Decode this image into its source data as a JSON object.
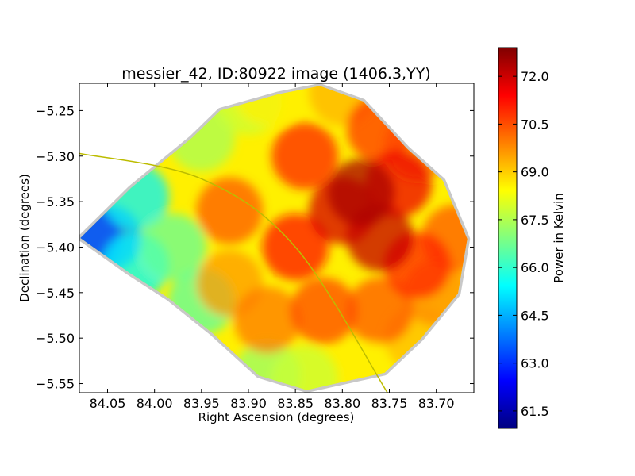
{
  "chart_data": {
    "type": "heatmap",
    "title": "messier_42, ID:80922 image (1406.3,YY)",
    "xlabel": "Right Ascension (degrees)",
    "ylabel": "Declination (degrees)",
    "xlim": [
      84.08,
      83.66
    ],
    "ylim": [
      -5.56,
      -5.22
    ],
    "x_ticks": [
      84.05,
      84.0,
      83.95,
      83.9,
      83.85,
      83.8,
      83.75,
      83.7
    ],
    "x_tick_labels": [
      "84.05",
      "84.00",
      "83.95",
      "83.90",
      "83.85",
      "83.80",
      "83.75",
      "83.70"
    ],
    "y_ticks": [
      -5.25,
      -5.3,
      -5.35,
      -5.4,
      -5.45,
      -5.5,
      -5.55
    ],
    "y_tick_labels": [
      "−5.25",
      "−5.30",
      "−5.35",
      "−5.40",
      "−5.45",
      "−5.50",
      "−5.55"
    ],
    "colorbar": {
      "label": "Power in Kelvin",
      "range": [
        60.95,
        72.9
      ],
      "ticks": [
        61.5,
        63.0,
        64.5,
        66.0,
        67.5,
        69.0,
        70.5,
        72.0
      ],
      "tick_labels": [
        "61.5",
        "63.0",
        "64.5",
        "66.0",
        "67.5",
        "69.0",
        "70.5",
        "72.0"
      ],
      "colormap": "jet"
    },
    "footprint_outline": [
      [
        84.079,
        -5.39
      ],
      [
        84.025,
        -5.335
      ],
      [
        83.96,
        -5.28
      ],
      [
        83.93,
        -5.25
      ],
      [
        83.868,
        -5.232
      ],
      [
        83.824,
        -5.223
      ],
      [
        83.778,
        -5.24
      ],
      [
        83.731,
        -5.292
      ],
      [
        83.693,
        -5.327
      ],
      [
        83.667,
        -5.391
      ],
      [
        83.677,
        -5.451
      ],
      [
        83.716,
        -5.5
      ],
      [
        83.755,
        -5.538
      ],
      [
        83.812,
        -5.551
      ],
      [
        83.838,
        -5.557
      ],
      [
        83.889,
        -5.541
      ],
      [
        83.939,
        -5.494
      ],
      [
        83.985,
        -5.456
      ],
      [
        84.027,
        -5.428
      ]
    ],
    "value_samples": [
      {
        "x": 84.07,
        "y": -5.392,
        "value": 62.8
      },
      {
        "x": 84.05,
        "y": -5.39,
        "value": 63.6
      },
      {
        "x": 84.02,
        "y": -5.345,
        "value": 65.3
      },
      {
        "x": 84.02,
        "y": -5.42,
        "value": 65.4
      },
      {
        "x": 83.98,
        "y": -5.4,
        "value": 66.6
      },
      {
        "x": 83.95,
        "y": -5.28,
        "value": 67.4
      },
      {
        "x": 83.95,
        "y": -5.46,
        "value": 66.5
      },
      {
        "x": 83.9,
        "y": -5.24,
        "value": 67.8
      },
      {
        "x": 83.88,
        "y": -5.23,
        "value": 68.6
      },
      {
        "x": 83.88,
        "y": -5.54,
        "value": 67.2
      },
      {
        "x": 83.84,
        "y": -5.545,
        "value": 67.8
      },
      {
        "x": 83.8,
        "y": -5.23,
        "value": 69.3
      },
      {
        "x": 83.76,
        "y": -5.54,
        "value": 68.6
      },
      {
        "x": 83.72,
        "y": -5.5,
        "value": 69.2
      },
      {
        "x": 83.7,
        "y": -5.45,
        "value": 69.8
      },
      {
        "x": 83.68,
        "y": -5.39,
        "value": 70.4
      },
      {
        "x": 83.72,
        "y": -5.29,
        "value": 70.0
      },
      {
        "x": 83.92,
        "y": -5.36,
        "value": 70.4
      },
      {
        "x": 83.92,
        "y": -5.44,
        "value": 69.6
      },
      {
        "x": 83.88,
        "y": -5.48,
        "value": 70.0
      },
      {
        "x": 83.84,
        "y": -5.3,
        "value": 71.0
      },
      {
        "x": 83.85,
        "y": -5.4,
        "value": 71.2
      },
      {
        "x": 83.82,
        "y": -5.47,
        "value": 70.6
      },
      {
        "x": 83.76,
        "y": -5.47,
        "value": 70.4
      },
      {
        "x": 83.76,
        "y": -5.27,
        "value": 70.8
      },
      {
        "x": 83.78,
        "y": -5.34,
        "value": 72.4
      },
      {
        "x": 83.76,
        "y": -5.39,
        "value": 72.1
      },
      {
        "x": 83.8,
        "y": -5.36,
        "value": 71.9
      },
      {
        "x": 83.74,
        "y": -5.33,
        "value": 71.6
      },
      {
        "x": 83.72,
        "y": -5.42,
        "value": 71.0
      }
    ],
    "overlay_arc": {
      "color": "#bcbc00",
      "description_points": [
        [
          84.08,
          -5.297
        ],
        [
          83.95,
          -5.325
        ],
        [
          83.85,
          -5.4
        ],
        [
          83.752,
          -5.56
        ]
      ]
    },
    "grid": false
  }
}
